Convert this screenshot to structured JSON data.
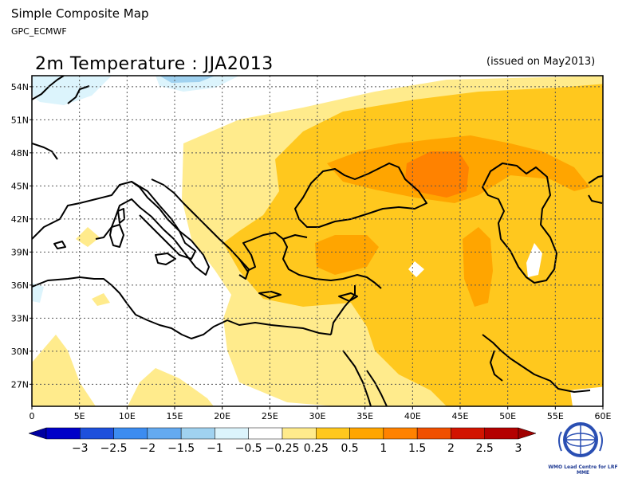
{
  "header": {
    "title": "Simple Composite Map",
    "subtitle": "GPC_ECMWF"
  },
  "map": {
    "title": "2m Temperature : JJA2013",
    "issued": "(issued on May2013)",
    "lat_labels": [
      "54N",
      "51N",
      "48N",
      "45N",
      "42N",
      "39N",
      "36N",
      "33N",
      "30N",
      "27N"
    ],
    "lon_labels": [
      "0",
      "5E",
      "10E",
      "15E",
      "20E",
      "25E",
      "30E",
      "35E",
      "40E",
      "45E",
      "50E",
      "55E",
      "60E"
    ],
    "gridlines": true,
    "region": "Mediterranean / Middle East",
    "extent": {
      "lon": [
        0,
        60
      ],
      "lat": [
        25,
        55
      ]
    }
  },
  "colorbar": {
    "labels": [
      "−3",
      "−2.5",
      "−2",
      "−1.5",
      "−1",
      "−0.5",
      "−0.25",
      "0.25",
      "0.5",
      "1",
      "1.5",
      "2",
      "2.5",
      "3"
    ],
    "colors": [
      "#0000c8",
      "#1e50dc",
      "#3c8cf0",
      "#64aaf0",
      "#a0d2f0",
      "#dcf4fc",
      "#ffffff",
      "#ffeb8c",
      "#ffc81e",
      "#ffa500",
      "#ff8200",
      "#f05000",
      "#d21400",
      "#b40000"
    ],
    "left_arrow_color": "#0000a0",
    "right_arrow_color": "#a00000"
  },
  "logo": {
    "name": "wmo-logo",
    "caption": "WMO Lead Centre for LRF MME"
  }
}
